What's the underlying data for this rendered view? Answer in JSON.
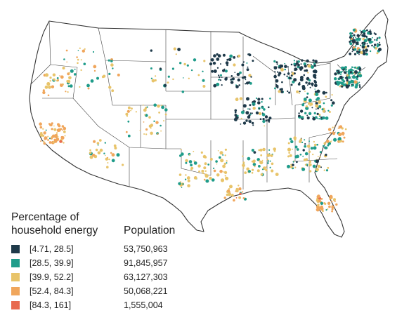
{
  "legend": {
    "title_line1": "Percentage of",
    "title_line2": "household energy",
    "population_title": "Population",
    "items": [
      {
        "range": "[4.71, 28.5]",
        "population": "53,750,963",
        "color": "#1f3a4a"
      },
      {
        "range": "[28.5, 39.9]",
        "population": "91,845,957",
        "color": "#1f9c8a"
      },
      {
        "range": "[39.9, 52.2]",
        "population": "63,127,303",
        "color": "#e8c46a"
      },
      {
        "range": "[52.4, 84.3]",
        "population": "50,068,221",
        "color": "#f0a65c"
      },
      {
        "range": "[84.3, 161]",
        "population": "1,555,004",
        "color": "#e86a4f"
      }
    ]
  },
  "map": {
    "land_color": "#ffffff",
    "border_color": "#333333",
    "boundary_color": "#444444"
  }
}
